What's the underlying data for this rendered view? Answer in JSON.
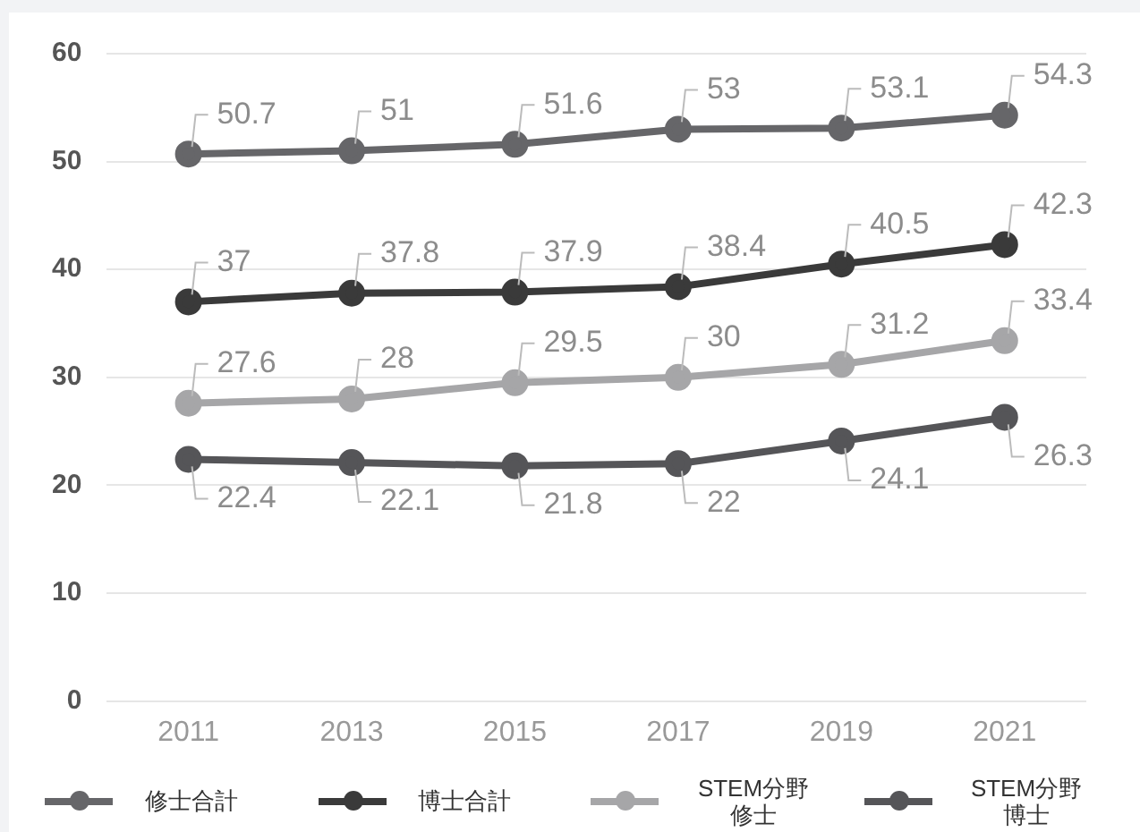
{
  "chart_data": {
    "type": "line",
    "categories": [
      "2011",
      "2013",
      "2015",
      "2017",
      "2019",
      "2021"
    ],
    "series": [
      {
        "name": "修士合計",
        "color": "#666669",
        "values": [
          50.7,
          51,
          51.6,
          53,
          53.1,
          54.3
        ]
      },
      {
        "name": "博士合計",
        "color": "#3a3a3a",
        "values": [
          37,
          37.8,
          37.9,
          38.4,
          40.5,
          42.3
        ]
      },
      {
        "name": "STEM分野修士",
        "color": "#a6a6a8",
        "values": [
          27.6,
          28,
          29.5,
          30,
          31.2,
          33.4
        ]
      },
      {
        "name": "STEM分野博士",
        "color": "#555558",
        "values": [
          22.4,
          22.1,
          21.8,
          22,
          24.1,
          26.3
        ]
      }
    ],
    "ylim": [
      0,
      60
    ],
    "yticks": [
      0,
      10,
      20,
      30,
      40,
      50,
      60
    ],
    "grid": "y",
    "legend": "bottom",
    "marker": "circle",
    "line_style": "solid",
    "data_labels": true
  }
}
